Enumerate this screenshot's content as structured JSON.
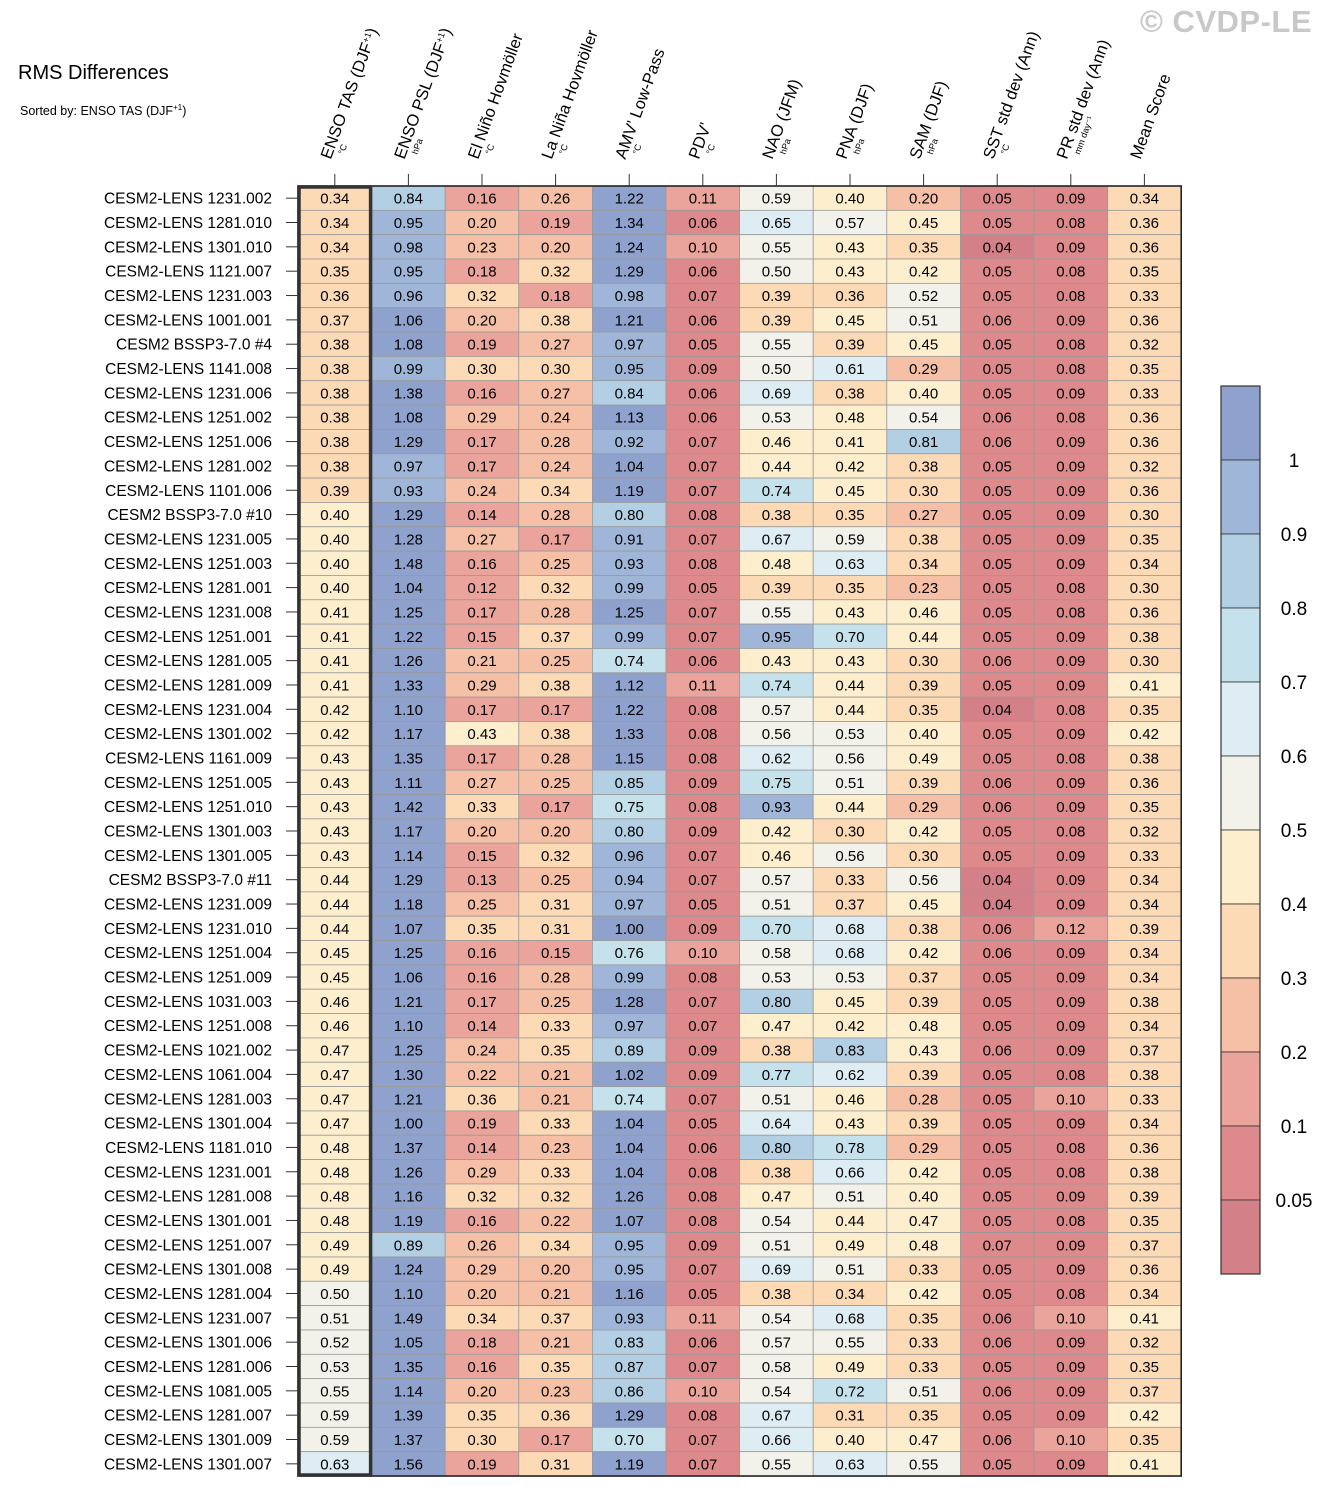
{
  "title": "RMS Differences",
  "sort_prefix": "Sorted by: ENSO TAS (DJF",
  "sort_sup": "+1",
  "sort_suffix": ")",
  "watermark": "© CVDP-LE",
  "colors": {
    "bins": [
      "#d48088",
      "#de8a8c",
      "#eba49b",
      "#f6c0a7",
      "#fddab6",
      "#fdeece",
      "#f3f2ea",
      "#ddedf3",
      "#c5e2ec",
      "#b2cfe4",
      "#9fb6d9",
      "#8fa1cd"
    ],
    "highlight_border": "#333333",
    "grid_line": "#999999"
  },
  "chart_data": {
    "type": "heatmap",
    "title": "RMS Differences",
    "sorted_by": "ENSO TAS (DJF+1)",
    "columns": [
      {
        "label": "ENSO TAS (DJF",
        "sup": "+1",
        "close": ")",
        "unit": "°C"
      },
      {
        "label": "ENSO PSL (DJF",
        "sup": "+1",
        "close": ")",
        "unit": "hPa"
      },
      {
        "label": "El Niño Hovmöller",
        "sup": "",
        "close": "",
        "unit": "°C"
      },
      {
        "label": "La Niña Hovmöller",
        "sup": "",
        "close": "",
        "unit": "°C"
      },
      {
        "label": "AMV' Low-Pass",
        "sup": "",
        "close": "",
        "unit": "°C"
      },
      {
        "label": "PDV'",
        "sup": "",
        "close": "",
        "unit": "°C"
      },
      {
        "label": "NAO (JFM)",
        "sup": "",
        "close": "",
        "unit": "hPa"
      },
      {
        "label": "PNA (DJF)",
        "sup": "",
        "close": "",
        "unit": "hPa"
      },
      {
        "label": "SAM (DJF)",
        "sup": "",
        "close": "",
        "unit": "hPa"
      },
      {
        "label": "SST std dev (Ann)",
        "sup": "",
        "close": "",
        "unit": "°C"
      },
      {
        "label": "PR std dev (Ann)",
        "sup": "",
        "close": "",
        "unit": "mm day⁻¹"
      },
      {
        "label": "Mean Score",
        "sup": "",
        "close": "",
        "unit": ""
      }
    ],
    "rows": [
      {
        "name": "CESM2-LENS 1231.002",
        "values": [
          "0.34",
          "0.84",
          "0.16",
          "0.26",
          "1.22",
          "0.11",
          "0.59",
          "0.40",
          "0.20",
          "0.05",
          "0.09",
          "0.34"
        ]
      },
      {
        "name": "CESM2-LENS 1281.010",
        "values": [
          "0.34",
          "0.95",
          "0.20",
          "0.19",
          "1.34",
          "0.06",
          "0.65",
          "0.57",
          "0.45",
          "0.05",
          "0.08",
          "0.36"
        ]
      },
      {
        "name": "CESM2-LENS 1301.010",
        "values": [
          "0.34",
          "0.98",
          "0.23",
          "0.20",
          "1.24",
          "0.10",
          "0.55",
          "0.43",
          "0.35",
          "0.04",
          "0.09",
          "0.36"
        ]
      },
      {
        "name": "CESM2-LENS 1121.007",
        "values": [
          "0.35",
          "0.95",
          "0.18",
          "0.32",
          "1.29",
          "0.06",
          "0.50",
          "0.43",
          "0.42",
          "0.05",
          "0.08",
          "0.35"
        ]
      },
      {
        "name": "CESM2-LENS 1231.003",
        "values": [
          "0.36",
          "0.96",
          "0.32",
          "0.18",
          "0.98",
          "0.07",
          "0.39",
          "0.36",
          "0.52",
          "0.05",
          "0.08",
          "0.33"
        ]
      },
      {
        "name": "CESM2-LENS 1001.001",
        "values": [
          "0.37",
          "1.06",
          "0.20",
          "0.38",
          "1.21",
          "0.06",
          "0.39",
          "0.45",
          "0.51",
          "0.06",
          "0.09",
          "0.36"
        ]
      },
      {
        "name": "CESM2 BSSP3-7.0 #4",
        "values": [
          "0.38",
          "1.08",
          "0.19",
          "0.27",
          "0.97",
          "0.05",
          "0.55",
          "0.39",
          "0.45",
          "0.05",
          "0.08",
          "0.32"
        ]
      },
      {
        "name": "CESM2-LENS 1141.008",
        "values": [
          "0.38",
          "0.99",
          "0.30",
          "0.30",
          "0.95",
          "0.09",
          "0.50",
          "0.61",
          "0.29",
          "0.05",
          "0.08",
          "0.35"
        ]
      },
      {
        "name": "CESM2-LENS 1231.006",
        "values": [
          "0.38",
          "1.38",
          "0.16",
          "0.27",
          "0.84",
          "0.06",
          "0.69",
          "0.38",
          "0.40",
          "0.05",
          "0.09",
          "0.33"
        ]
      },
      {
        "name": "CESM2-LENS 1251.002",
        "values": [
          "0.38",
          "1.08",
          "0.29",
          "0.24",
          "1.13",
          "0.06",
          "0.53",
          "0.48",
          "0.54",
          "0.06",
          "0.08",
          "0.36"
        ]
      },
      {
        "name": "CESM2-LENS 1251.006",
        "values": [
          "0.38",
          "1.29",
          "0.17",
          "0.28",
          "0.92",
          "0.07",
          "0.46",
          "0.41",
          "0.81",
          "0.06",
          "0.09",
          "0.36"
        ]
      },
      {
        "name": "CESM2-LENS 1281.002",
        "values": [
          "0.38",
          "0.97",
          "0.17",
          "0.24",
          "1.04",
          "0.07",
          "0.44",
          "0.42",
          "0.38",
          "0.05",
          "0.09",
          "0.32"
        ]
      },
      {
        "name": "CESM2-LENS 1101.006",
        "values": [
          "0.39",
          "0.93",
          "0.24",
          "0.34",
          "1.19",
          "0.07",
          "0.74",
          "0.45",
          "0.30",
          "0.05",
          "0.09",
          "0.36"
        ]
      },
      {
        "name": "CESM2 BSSP3-7.0 #10",
        "values": [
          "0.40",
          "1.29",
          "0.14",
          "0.28",
          "0.80",
          "0.08",
          "0.38",
          "0.35",
          "0.27",
          "0.05",
          "0.09",
          "0.30"
        ]
      },
      {
        "name": "CESM2-LENS 1231.005",
        "values": [
          "0.40",
          "1.28",
          "0.27",
          "0.17",
          "0.91",
          "0.07",
          "0.67",
          "0.59",
          "0.38",
          "0.05",
          "0.09",
          "0.35"
        ]
      },
      {
        "name": "CESM2-LENS 1251.003",
        "values": [
          "0.40",
          "1.48",
          "0.16",
          "0.25",
          "0.93",
          "0.08",
          "0.48",
          "0.63",
          "0.34",
          "0.05",
          "0.09",
          "0.34"
        ]
      },
      {
        "name": "CESM2-LENS 1281.001",
        "values": [
          "0.40",
          "1.04",
          "0.12",
          "0.32",
          "0.99",
          "0.05",
          "0.39",
          "0.35",
          "0.23",
          "0.05",
          "0.08",
          "0.30"
        ]
      },
      {
        "name": "CESM2-LENS 1231.008",
        "values": [
          "0.41",
          "1.25",
          "0.17",
          "0.28",
          "1.25",
          "0.07",
          "0.55",
          "0.43",
          "0.46",
          "0.05",
          "0.08",
          "0.36"
        ]
      },
      {
        "name": "CESM2-LENS 1251.001",
        "values": [
          "0.41",
          "1.22",
          "0.15",
          "0.37",
          "0.99",
          "0.07",
          "0.95",
          "0.70",
          "0.44",
          "0.05",
          "0.09",
          "0.38"
        ]
      },
      {
        "name": "CESM2-LENS 1281.005",
        "values": [
          "0.41",
          "1.26",
          "0.21",
          "0.25",
          "0.74",
          "0.06",
          "0.43",
          "0.43",
          "0.30",
          "0.06",
          "0.09",
          "0.30"
        ]
      },
      {
        "name": "CESM2-LENS 1281.009",
        "values": [
          "0.41",
          "1.33",
          "0.29",
          "0.38",
          "1.12",
          "0.11",
          "0.74",
          "0.44",
          "0.39",
          "0.05",
          "0.09",
          "0.41"
        ]
      },
      {
        "name": "CESM2-LENS 1231.004",
        "values": [
          "0.42",
          "1.10",
          "0.17",
          "0.17",
          "1.22",
          "0.08",
          "0.57",
          "0.44",
          "0.35",
          "0.04",
          "0.08",
          "0.35"
        ]
      },
      {
        "name": "CESM2-LENS 1301.002",
        "values": [
          "0.42",
          "1.17",
          "0.43",
          "0.38",
          "1.33",
          "0.08",
          "0.56",
          "0.53",
          "0.40",
          "0.05",
          "0.09",
          "0.42"
        ]
      },
      {
        "name": "CESM2-LENS 1161.009",
        "values": [
          "0.43",
          "1.35",
          "0.17",
          "0.28",
          "1.15",
          "0.08",
          "0.62",
          "0.56",
          "0.49",
          "0.05",
          "0.08",
          "0.38"
        ]
      },
      {
        "name": "CESM2-LENS 1251.005",
        "values": [
          "0.43",
          "1.11",
          "0.27",
          "0.25",
          "0.85",
          "0.09",
          "0.75",
          "0.51",
          "0.39",
          "0.06",
          "0.09",
          "0.36"
        ]
      },
      {
        "name": "CESM2-LENS 1251.010",
        "values": [
          "0.43",
          "1.42",
          "0.33",
          "0.17",
          "0.75",
          "0.08",
          "0.93",
          "0.44",
          "0.29",
          "0.06",
          "0.09",
          "0.35"
        ]
      },
      {
        "name": "CESM2-LENS 1301.003",
        "values": [
          "0.43",
          "1.17",
          "0.20",
          "0.20",
          "0.80",
          "0.09",
          "0.42",
          "0.30",
          "0.42",
          "0.05",
          "0.08",
          "0.32"
        ]
      },
      {
        "name": "CESM2-LENS 1301.005",
        "values": [
          "0.43",
          "1.14",
          "0.15",
          "0.32",
          "0.96",
          "0.07",
          "0.46",
          "0.56",
          "0.30",
          "0.05",
          "0.09",
          "0.33"
        ]
      },
      {
        "name": "CESM2 BSSP3-7.0 #11",
        "values": [
          "0.44",
          "1.29",
          "0.13",
          "0.25",
          "0.94",
          "0.07",
          "0.57",
          "0.33",
          "0.56",
          "0.04",
          "0.09",
          "0.34"
        ]
      },
      {
        "name": "CESM2-LENS 1231.009",
        "values": [
          "0.44",
          "1.18",
          "0.25",
          "0.31",
          "0.97",
          "0.05",
          "0.51",
          "0.37",
          "0.45",
          "0.04",
          "0.09",
          "0.34"
        ]
      },
      {
        "name": "CESM2-LENS 1231.010",
        "values": [
          "0.44",
          "1.07",
          "0.35",
          "0.31",
          "1.00",
          "0.09",
          "0.70",
          "0.68",
          "0.38",
          "0.06",
          "0.12",
          "0.39"
        ]
      },
      {
        "name": "CESM2-LENS 1251.004",
        "values": [
          "0.45",
          "1.25",
          "0.16",
          "0.15",
          "0.76",
          "0.10",
          "0.58",
          "0.68",
          "0.42",
          "0.06",
          "0.09",
          "0.34"
        ]
      },
      {
        "name": "CESM2-LENS 1251.009",
        "values": [
          "0.45",
          "1.06",
          "0.16",
          "0.28",
          "0.99",
          "0.08",
          "0.53",
          "0.53",
          "0.37",
          "0.05",
          "0.09",
          "0.34"
        ]
      },
      {
        "name": "CESM2-LENS 1031.003",
        "values": [
          "0.46",
          "1.21",
          "0.17",
          "0.25",
          "1.28",
          "0.07",
          "0.80",
          "0.45",
          "0.39",
          "0.05",
          "0.09",
          "0.38"
        ]
      },
      {
        "name": "CESM2-LENS 1251.008",
        "values": [
          "0.46",
          "1.10",
          "0.14",
          "0.33",
          "0.97",
          "0.07",
          "0.47",
          "0.42",
          "0.48",
          "0.05",
          "0.09",
          "0.34"
        ]
      },
      {
        "name": "CESM2-LENS 1021.002",
        "values": [
          "0.47",
          "1.25",
          "0.24",
          "0.35",
          "0.89",
          "0.09",
          "0.38",
          "0.83",
          "0.43",
          "0.06",
          "0.09",
          "0.37"
        ]
      },
      {
        "name": "CESM2-LENS 1061.004",
        "values": [
          "0.47",
          "1.30",
          "0.22",
          "0.21",
          "1.02",
          "0.09",
          "0.77",
          "0.62",
          "0.39",
          "0.05",
          "0.08",
          "0.38"
        ]
      },
      {
        "name": "CESM2-LENS 1281.003",
        "values": [
          "0.47",
          "1.21",
          "0.36",
          "0.21",
          "0.74",
          "0.07",
          "0.51",
          "0.46",
          "0.28",
          "0.05",
          "0.10",
          "0.33"
        ]
      },
      {
        "name": "CESM2-LENS 1301.004",
        "values": [
          "0.47",
          "1.00",
          "0.19",
          "0.33",
          "1.04",
          "0.05",
          "0.64",
          "0.43",
          "0.39",
          "0.05",
          "0.09",
          "0.34"
        ]
      },
      {
        "name": "CESM2-LENS 1181.010",
        "values": [
          "0.48",
          "1.37",
          "0.14",
          "0.23",
          "1.04",
          "0.06",
          "0.80",
          "0.78",
          "0.29",
          "0.05",
          "0.08",
          "0.36"
        ]
      },
      {
        "name": "CESM2-LENS 1231.001",
        "values": [
          "0.48",
          "1.26",
          "0.29",
          "0.33",
          "1.04",
          "0.08",
          "0.38",
          "0.66",
          "0.42",
          "0.05",
          "0.08",
          "0.38"
        ]
      },
      {
        "name": "CESM2-LENS 1281.008",
        "values": [
          "0.48",
          "1.16",
          "0.32",
          "0.32",
          "1.26",
          "0.08",
          "0.47",
          "0.51",
          "0.40",
          "0.05",
          "0.09",
          "0.39"
        ]
      },
      {
        "name": "CESM2-LENS 1301.001",
        "values": [
          "0.48",
          "1.19",
          "0.16",
          "0.22",
          "1.07",
          "0.08",
          "0.54",
          "0.44",
          "0.47",
          "0.05",
          "0.08",
          "0.35"
        ]
      },
      {
        "name": "CESM2-LENS 1251.007",
        "values": [
          "0.49",
          "0.89",
          "0.26",
          "0.34",
          "0.95",
          "0.09",
          "0.51",
          "0.49",
          "0.48",
          "0.07",
          "0.09",
          "0.37"
        ]
      },
      {
        "name": "CESM2-LENS 1301.008",
        "values": [
          "0.49",
          "1.24",
          "0.29",
          "0.20",
          "0.95",
          "0.07",
          "0.69",
          "0.51",
          "0.33",
          "0.05",
          "0.09",
          "0.36"
        ]
      },
      {
        "name": "CESM2-LENS 1281.004",
        "values": [
          "0.50",
          "1.10",
          "0.20",
          "0.21",
          "1.16",
          "0.05",
          "0.38",
          "0.34",
          "0.42",
          "0.05",
          "0.08",
          "0.34"
        ]
      },
      {
        "name": "CESM2-LENS 1231.007",
        "values": [
          "0.51",
          "1.49",
          "0.34",
          "0.37",
          "0.93",
          "0.11",
          "0.54",
          "0.68",
          "0.35",
          "0.06",
          "0.10",
          "0.41"
        ]
      },
      {
        "name": "CESM2-LENS 1301.006",
        "values": [
          "0.52",
          "1.05",
          "0.18",
          "0.21",
          "0.83",
          "0.06",
          "0.57",
          "0.55",
          "0.33",
          "0.06",
          "0.09",
          "0.32"
        ]
      },
      {
        "name": "CESM2-LENS 1281.006",
        "values": [
          "0.53",
          "1.35",
          "0.16",
          "0.35",
          "0.87",
          "0.07",
          "0.58",
          "0.49",
          "0.33",
          "0.05",
          "0.09",
          "0.35"
        ]
      },
      {
        "name": "CESM2-LENS 1081.005",
        "values": [
          "0.55",
          "1.14",
          "0.20",
          "0.23",
          "0.86",
          "0.10",
          "0.54",
          "0.72",
          "0.51",
          "0.06",
          "0.09",
          "0.37"
        ]
      },
      {
        "name": "CESM2-LENS 1281.007",
        "values": [
          "0.59",
          "1.39",
          "0.35",
          "0.36",
          "1.29",
          "0.08",
          "0.67",
          "0.31",
          "0.35",
          "0.05",
          "0.09",
          "0.42"
        ]
      },
      {
        "name": "CESM2-LENS 1301.009",
        "values": [
          "0.59",
          "1.37",
          "0.30",
          "0.17",
          "0.70",
          "0.07",
          "0.66",
          "0.40",
          "0.47",
          "0.06",
          "0.10",
          "0.35"
        ]
      },
      {
        "name": "CESM2-LENS 1301.007",
        "values": [
          "0.63",
          "1.56",
          "0.19",
          "0.31",
          "1.19",
          "0.07",
          "0.55",
          "0.63",
          "0.55",
          "0.05",
          "0.09",
          "0.41"
        ]
      }
    ],
    "color_levels": [
      0.05,
      0.1,
      0.2,
      0.3,
      0.4,
      0.5,
      0.6,
      0.7,
      0.8,
      0.9,
      1
    ],
    "colorbar_labels": [
      "1",
      "0.9",
      "0.8",
      "0.7",
      "0.6",
      "0.5",
      "0.4",
      "0.3",
      "0.2",
      "0.1",
      "0.05"
    ],
    "highlighted_column": 0
  }
}
